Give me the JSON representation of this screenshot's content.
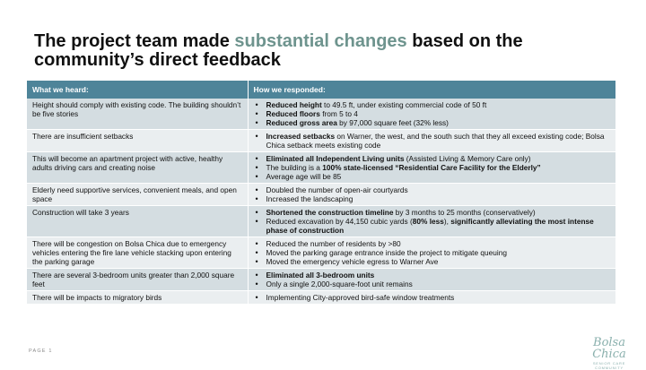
{
  "title": {
    "before": "The project team made ",
    "accent": "substantial changes",
    "after": " based on the community’s direct feedback",
    "accent_color": "#6e948e"
  },
  "table": {
    "headers": [
      "What we heard:",
      "How we responded:"
    ],
    "header_color": "#4e8499",
    "rows": [
      {
        "heard": "Height should comply with existing code. The building shouldn’t be five stories",
        "responses": [
          {
            "bold": "Reduced height",
            "rest": " to 49.5 ft, under existing commercial code of 50 ft"
          },
          {
            "bold": "Reduced floors",
            "rest": " from 5 to 4"
          },
          {
            "bold": "Reduced gross area",
            "rest": " by 97,000 square feet (32% less)"
          }
        ]
      },
      {
        "heard": "There are insufficient setbacks",
        "responses": [
          {
            "bold": "Increased setbacks",
            "rest": " on Warner, the west, and the south such that they all exceed existing code; Bolsa Chica setback meets existing code"
          }
        ]
      },
      {
        "heard": "This will become an apartment project with active, healthy adults driving cars and creating noise",
        "responses": [
          {
            "bold": "Eliminated all Independent Living units",
            "rest": " (Assisted Living & Memory Care only)"
          },
          {
            "pre": "The building is a ",
            "bold": "100% state-licensed “Residential Care Facility for the Elderly”",
            "rest": ""
          },
          {
            "bold": "",
            "rest": "Average age will be 85"
          }
        ]
      },
      {
        "heard": "Elderly need supportive services, convenient meals, and open space",
        "responses": [
          {
            "bold": "",
            "rest": "Doubled the number of open-air courtyards"
          },
          {
            "bold": "",
            "rest": "Increased the landscaping"
          }
        ]
      },
      {
        "heard": "Construction will take 3 years",
        "responses": [
          {
            "bold": "Shortened the construction timeline",
            "rest": " by 3 months to 25 months (conservatively)"
          },
          {
            "pre": "Reduced excavation by 44,150 cubic yards (",
            "bold": "80% less",
            "rest": "), ",
            "bold2": "significantly alleviating the most intense phase of construction"
          }
        ]
      },
      {
        "heard": "There will be congestion on Bolsa Chica due to emergency vehicles entering the fire lane vehicle stacking upon entering the parking garage",
        "responses": [
          {
            "bold": "",
            "rest": "Reduced the number of residents by >80"
          },
          {
            "bold": "",
            "rest": "Moved the parking garage entrance inside the project to mitigate queuing"
          },
          {
            "bold": "",
            "rest": "Moved the emergency vehicle egress to Warner Ave"
          }
        ]
      },
      {
        "heard": "There are several 3-bedroom units greater than 2,000 square feet",
        "responses": [
          {
            "bold": "Eliminated all 3-bedroom units",
            "rest": ""
          },
          {
            "bold": "",
            "rest": "Only a single 2,000-square-foot unit remains"
          }
        ]
      },
      {
        "heard": "There will be impacts to migratory birds",
        "responses": [
          {
            "bold": "",
            "rest": "Implementing City-approved bird-safe window treatments"
          }
        ]
      }
    ]
  },
  "footer": {
    "page_label": "PAGE 1"
  },
  "logo": {
    "script": "Bolsa Chica",
    "sub": "SENIOR CARE COMMUNITY",
    "color": "#8ab0ad"
  }
}
